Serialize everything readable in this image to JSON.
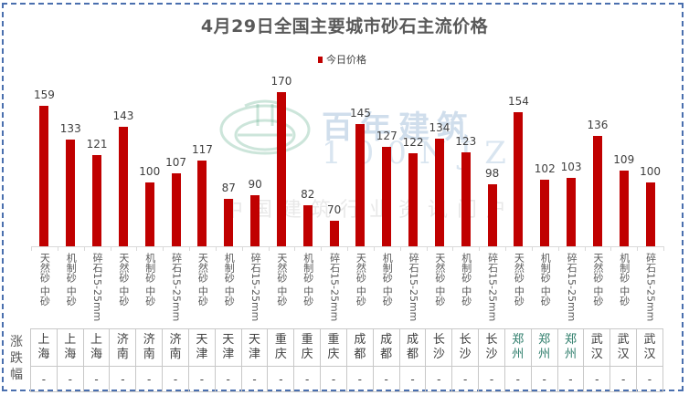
{
  "title": "4月29日全国主要城市砂石主流价格",
  "legend": {
    "label": "今日价格",
    "color": "#c00000"
  },
  "watermark": {
    "brand_cn": "百年建筑",
    "brand_en": "100NJZ",
    "tagline": "中国建筑行业资讯门户"
  },
  "table": {
    "row_header": "涨跌幅",
    "cities": [
      "上海",
      "上海",
      "上海",
      "济南",
      "济南",
      "济南",
      "天津",
      "天津",
      "天津",
      "重庆",
      "重庆",
      "重庆",
      "成都",
      "成都",
      "成都",
      "长沙",
      "长沙",
      "长沙",
      "郑州",
      "郑州",
      "郑州",
      "武汉",
      "武汉",
      "武汉"
    ],
    "changes": [
      "-",
      "-",
      "-",
      "-",
      "-",
      "-",
      "-",
      "-",
      "-",
      "-",
      "-",
      "-",
      "-",
      "-",
      "-",
      "-",
      "-",
      "-",
      "-",
      "-",
      "-",
      "-",
      "-",
      "-"
    ]
  },
  "chart_data": {
    "type": "bar",
    "title": "4月29日全国主要城市砂石主流价格",
    "xlabel": "",
    "ylabel": "",
    "legend": [
      "今日价格"
    ],
    "legend_position": "top",
    "grid": false,
    "ylim": [
      50,
      180
    ],
    "categories": [
      "天然砂 中砂",
      "机制砂 中砂",
      "碎石15-25mm",
      "天然砂 中砂",
      "机制砂 中砂",
      "碎石15-25mm",
      "天然砂 中砂",
      "机制砂 中砂",
      "碎石15-25mm",
      "天然砂 中砂",
      "机制砂 中砂",
      "碎石15-25mm",
      "天然砂 中砂",
      "机制砂 中砂",
      "碎石15-25mm",
      "天然砂 中砂",
      "机制砂 中砂",
      "碎石15-25mm",
      "天然砂 中砂",
      "机制砂 中砂",
      "碎石15-25mm",
      "天然砂 中砂",
      "机制砂 中砂",
      "碎石15-25mm"
    ],
    "groups": [
      "上海",
      "上海",
      "上海",
      "济南",
      "济南",
      "济南",
      "天津",
      "天津",
      "天津",
      "重庆",
      "重庆",
      "重庆",
      "成都",
      "成都",
      "成都",
      "长沙",
      "长沙",
      "长沙",
      "郑州",
      "郑州",
      "郑州",
      "武汉",
      "武汉",
      "武汉"
    ],
    "series": [
      {
        "name": "今日价格",
        "color": "#c00000",
        "values": [
          159,
          133,
          121,
          143,
          100,
          107,
          117,
          87,
          90,
          170,
          82,
          70,
          145,
          127,
          122,
          134,
          123,
          98,
          154,
          102,
          103,
          136,
          109,
          100
        ]
      }
    ]
  }
}
